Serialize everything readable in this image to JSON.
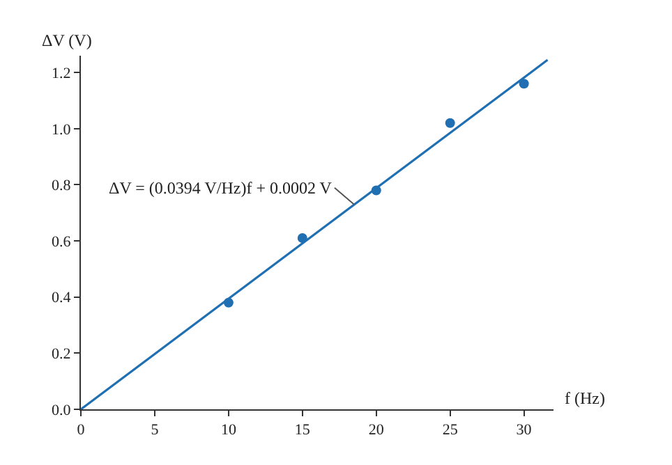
{
  "chart_data": {
    "type": "scatter",
    "xlabel": "f (Hz)",
    "ylabel": "ΔV (V)",
    "series": [
      {
        "color": "#1f6fb2",
        "x": [
          10,
          15,
          20,
          25,
          30
        ],
        "values": [
          0.38,
          0.61,
          0.78,
          1.02,
          1.16
        ],
        "marker": "circle"
      },
      {
        "type": "line",
        "color": "#1f6fb2",
        "x": [
          0,
          31.6
        ],
        "values": [
          0,
          1.245
        ],
        "marker": "none",
        "line_style": "solid"
      }
    ],
    "annotations": [
      {
        "text": "ΔV = (0.0394 V/Hz)f + 0.0002 V",
        "x": 18.5,
        "y": 0.73
      }
    ],
    "xlim": [
      0,
      32
    ],
    "xticks": [
      0,
      5,
      10,
      15,
      20,
      25,
      30
    ],
    "ylim": [
      0,
      1.26
    ],
    "yticks": [
      {
        "value": 0,
        "label": "0.0"
      },
      0.2,
      0.4,
      0.6,
      0.8,
      {
        "value": 1,
        "label": "1.0"
      },
      1.2
    ]
  }
}
